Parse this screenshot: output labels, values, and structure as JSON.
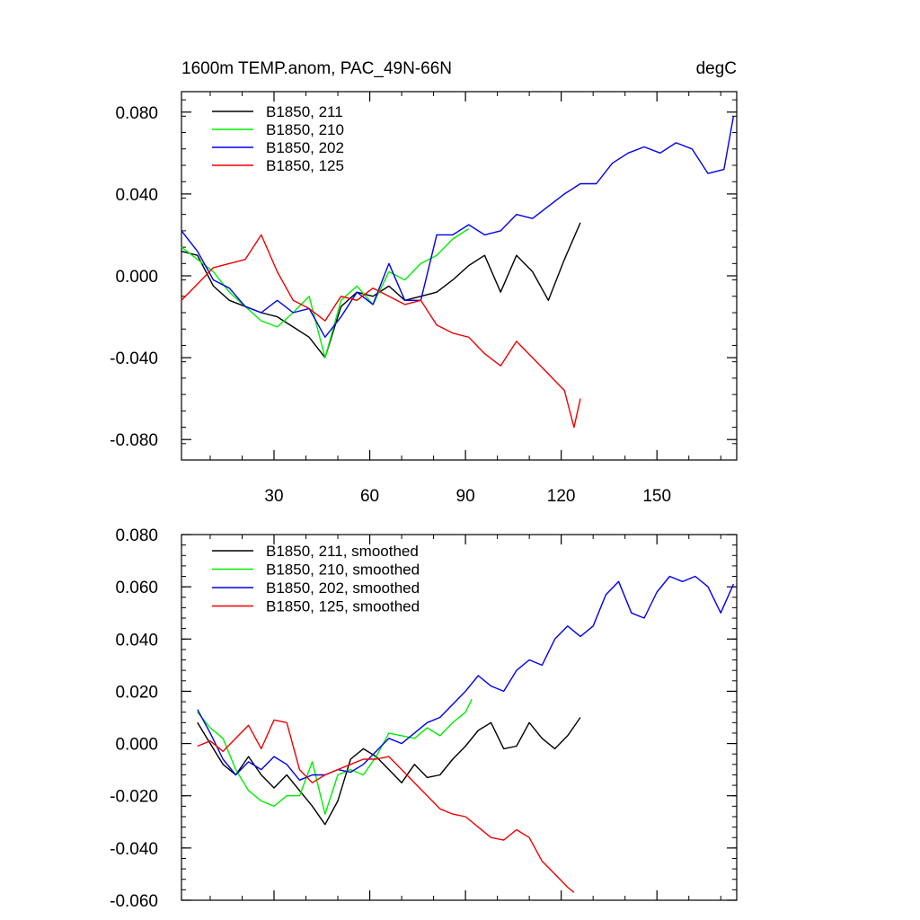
{
  "chart_data": [
    {
      "type": "line",
      "title": "1600m TEMP.anom, PAC_49N-66N",
      "units": "degC",
      "xlabel": "",
      "ylabel": "",
      "xlim": [
        1,
        175
      ],
      "ylim": [
        -0.09,
        0.09
      ],
      "x_major_ticks": [
        30,
        60,
        90,
        120,
        150
      ],
      "x_tick_labels": [
        "30",
        "60",
        "90",
        "120",
        "150"
      ],
      "y_major_ticks": [
        -0.08,
        -0.04,
        0.0,
        0.04,
        0.08
      ],
      "y_tick_labels": [
        "-0.080",
        "-0.040",
        "0.000",
        "0.040",
        "0.080"
      ],
      "legend_position": "top-left",
      "series": [
        {
          "name": "B1850, 211",
          "color": "#000000",
          "x": [
            1,
            6,
            11,
            16,
            21,
            26,
            31,
            36,
            41,
            46,
            51,
            56,
            61,
            66,
            71,
            76,
            81,
            86,
            91,
            96,
            101,
            106,
            111,
            116,
            121,
            126
          ],
          "y": [
            0.012,
            0.01,
            -0.005,
            -0.012,
            -0.015,
            -0.018,
            -0.02,
            -0.025,
            -0.03,
            -0.04,
            -0.015,
            -0.008,
            -0.01,
            -0.005,
            -0.012,
            -0.01,
            -0.008,
            -0.002,
            0.005,
            0.01,
            -0.008,
            0.01,
            0.002,
            -0.012,
            0.008,
            0.026
          ]
        },
        {
          "name": "B1850, 210",
          "color": "#00ee00",
          "x": [
            1,
            6,
            11,
            16,
            21,
            26,
            31,
            36,
            41,
            46,
            51,
            56,
            61,
            66,
            71,
            76,
            81,
            86,
            91
          ],
          "y": [
            0.014,
            0.008,
            0.002,
            -0.008,
            -0.015,
            -0.022,
            -0.025,
            -0.018,
            -0.01,
            -0.04,
            -0.012,
            -0.005,
            -0.014,
            0.002,
            -0.002,
            0.006,
            0.01,
            0.018,
            0.023
          ]
        },
        {
          "name": "B1850, 202",
          "color": "#0000ee",
          "x": [
            1,
            6,
            11,
            16,
            21,
            26,
            31,
            36,
            41,
            46,
            51,
            56,
            61,
            66,
            71,
            76,
            81,
            86,
            91,
            96,
            101,
            106,
            111,
            116,
            121,
            126,
            131,
            136,
            141,
            146,
            151,
            156,
            161,
            166,
            171,
            174
          ],
          "y": [
            0.022,
            0.012,
            -0.002,
            -0.006,
            -0.015,
            -0.018,
            -0.012,
            -0.018,
            -0.016,
            -0.03,
            -0.02,
            -0.008,
            -0.014,
            0.006,
            -0.012,
            -0.012,
            0.02,
            0.02,
            0.025,
            0.02,
            0.022,
            0.03,
            0.028,
            0.034,
            0.04,
            0.045,
            0.045,
            0.055,
            0.06,
            0.063,
            0.06,
            0.065,
            0.062,
            0.05,
            0.052,
            0.078
          ]
        },
        {
          "name": "B1850, 125",
          "color": "#ee0000",
          "x": [
            1,
            6,
            11,
            16,
            21,
            26,
            31,
            36,
            41,
            46,
            51,
            56,
            61,
            66,
            71,
            76,
            81,
            86,
            91,
            96,
            101,
            106,
            111,
            116,
            121,
            124,
            126
          ],
          "y": [
            -0.012,
            -0.004,
            0.004,
            0.006,
            0.008,
            0.02,
            0.002,
            -0.012,
            -0.016,
            -0.022,
            -0.01,
            -0.012,
            -0.006,
            -0.01,
            -0.014,
            -0.012,
            -0.024,
            -0.028,
            -0.03,
            -0.038,
            -0.044,
            -0.032,
            -0.04,
            -0.048,
            -0.056,
            -0.074,
            -0.06
          ]
        }
      ]
    },
    {
      "type": "line",
      "title": "",
      "xlabel": "",
      "ylabel": "",
      "xlim": [
        1,
        175
      ],
      "ylim": [
        -0.06,
        0.08
      ],
      "x_major_ticks": [
        30,
        60,
        90,
        120,
        150
      ],
      "y_major_ticks": [
        -0.06,
        -0.04,
        -0.02,
        0.0,
        0.02,
        0.04,
        0.06,
        0.08
      ],
      "y_tick_labels": [
        "-0.060",
        "-0.040",
        "-0.020",
        "0.000",
        "0.020",
        "0.040",
        "0.060",
        "0.080"
      ],
      "legend_position": "top-left",
      "series": [
        {
          "name": "B1850, 211, smoothed",
          "color": "#000000",
          "x": [
            6,
            10,
            14,
            18,
            22,
            26,
            30,
            34,
            38,
            42,
            46,
            50,
            54,
            58,
            62,
            66,
            70,
            74,
            78,
            82,
            86,
            90,
            94,
            98,
            102,
            106,
            110,
            114,
            118,
            122,
            126
          ],
          "y": [
            0.008,
            0.0,
            -0.008,
            -0.012,
            -0.005,
            -0.012,
            -0.017,
            -0.012,
            -0.018,
            -0.024,
            -0.031,
            -0.022,
            -0.006,
            -0.002,
            -0.005,
            -0.01,
            -0.015,
            -0.008,
            -0.013,
            -0.012,
            -0.006,
            -0.001,
            0.005,
            0.008,
            -0.002,
            -0.001,
            0.008,
            0.002,
            -0.002,
            0.003,
            0.01
          ]
        },
        {
          "name": "B1850, 210, smoothed",
          "color": "#00ee00",
          "x": [
            6,
            10,
            14,
            18,
            22,
            26,
            30,
            34,
            38,
            42,
            46,
            50,
            54,
            58,
            62,
            66,
            70,
            74,
            78,
            82,
            86,
            90,
            92
          ],
          "y": [
            0.012,
            0.006,
            0.002,
            -0.01,
            -0.018,
            -0.022,
            -0.024,
            -0.02,
            -0.02,
            -0.007,
            -0.027,
            -0.012,
            -0.01,
            -0.012,
            -0.005,
            0.004,
            0.003,
            0.002,
            0.006,
            0.003,
            0.008,
            0.012,
            0.017
          ]
        },
        {
          "name": "B1850, 202, smoothed",
          "color": "#0000ee",
          "x": [
            6,
            10,
            14,
            18,
            22,
            26,
            30,
            34,
            38,
            42,
            46,
            50,
            54,
            58,
            62,
            66,
            70,
            74,
            78,
            82,
            86,
            90,
            94,
            98,
            102,
            106,
            110,
            114,
            118,
            122,
            126,
            130,
            134,
            138,
            142,
            146,
            150,
            154,
            158,
            162,
            166,
            170,
            174
          ],
          "y": [
            0.013,
            0.004,
            -0.006,
            -0.012,
            -0.007,
            -0.01,
            -0.005,
            -0.008,
            -0.014,
            -0.012,
            -0.012,
            -0.01,
            -0.011,
            -0.008,
            -0.003,
            0.002,
            0.0,
            0.004,
            0.008,
            0.01,
            0.015,
            0.02,
            0.026,
            0.022,
            0.02,
            0.028,
            0.032,
            0.03,
            0.04,
            0.045,
            0.041,
            0.045,
            0.057,
            0.062,
            0.05,
            0.048,
            0.058,
            0.064,
            0.062,
            0.064,
            0.06,
            0.05,
            0.061
          ]
        },
        {
          "name": "B1850, 125, smoothed",
          "color": "#ee0000",
          "x": [
            6,
            10,
            14,
            18,
            22,
            26,
            30,
            34,
            38,
            42,
            46,
            50,
            54,
            58,
            62,
            66,
            70,
            74,
            78,
            82,
            86,
            90,
            94,
            98,
            102,
            106,
            110,
            114,
            118,
            122,
            124
          ],
          "y": [
            -0.001,
            0.001,
            -0.003,
            0.002,
            0.007,
            -0.002,
            0.009,
            0.008,
            -0.01,
            -0.015,
            -0.012,
            -0.01,
            -0.008,
            -0.006,
            -0.006,
            -0.005,
            -0.01,
            -0.015,
            -0.02,
            -0.025,
            -0.027,
            -0.028,
            -0.032,
            -0.036,
            -0.037,
            -0.033,
            -0.036,
            -0.045,
            -0.05,
            -0.055,
            -0.057
          ]
        }
      ]
    }
  ]
}
